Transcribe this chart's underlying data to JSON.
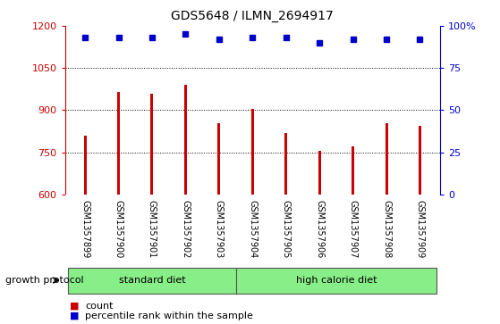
{
  "title": "GDS5648 / ILMN_2694917",
  "categories": [
    "GSM1357899",
    "GSM1357900",
    "GSM1357901",
    "GSM1357902",
    "GSM1357903",
    "GSM1357904",
    "GSM1357905",
    "GSM1357906",
    "GSM1357907",
    "GSM1357908",
    "GSM1357909"
  ],
  "bar_values": [
    810,
    965,
    960,
    990,
    855,
    905,
    820,
    755,
    770,
    855,
    845
  ],
  "percentile_values": [
    93,
    93,
    93,
    95,
    92,
    93,
    93,
    90,
    92,
    92,
    92
  ],
  "ylim_left": [
    600,
    1200
  ],
  "ylim_right": [
    0,
    100
  ],
  "yticks_left": [
    600,
    750,
    900,
    1050,
    1200
  ],
  "yticks_right": [
    0,
    25,
    50,
    75,
    100
  ],
  "bar_color": "#cc0000",
  "dot_color": "#0000cc",
  "bg_color": "#ffffff",
  "tick_area_bg": "#cccccc",
  "group1_label": "standard diet",
  "group2_label": "high calorie diet",
  "group1_indices": [
    0,
    1,
    2,
    3,
    4
  ],
  "group2_indices": [
    5,
    6,
    7,
    8,
    9,
    10
  ],
  "group_bg_color": "#88ee88",
  "protocol_label": "growth protocol",
  "legend_count_label": "count",
  "legend_pct_label": "percentile rank within the sample",
  "bar_width": 0.08
}
